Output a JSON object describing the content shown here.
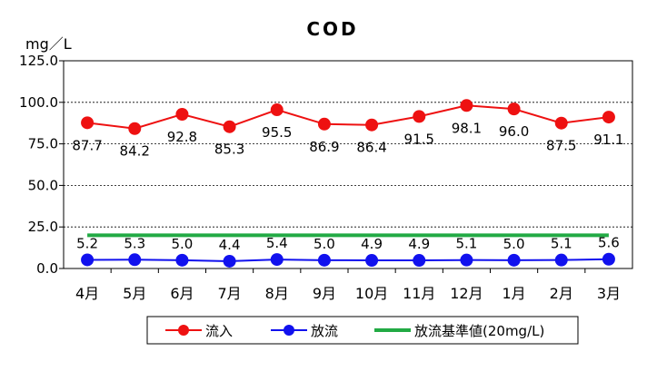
{
  "chart_data": {
    "type": "line",
    "title": "COD",
    "ylabel": "mg／L",
    "xlabel": "",
    "categories": [
      "4月",
      "5月",
      "6月",
      "7月",
      "8月",
      "9月",
      "10月",
      "11月",
      "12月",
      "1月",
      "2月",
      "3月"
    ],
    "ylim": [
      0,
      125
    ],
    "yticks": [
      "0.0",
      "25.0",
      "50.0",
      "75.0",
      "100.0",
      "125.0"
    ],
    "grid": "horizontal dashed",
    "legend_position": "bottom",
    "series": [
      {
        "name": "流入",
        "color": "#ee1111",
        "marker": "circle",
        "values": [
          87.7,
          84.2,
          92.8,
          85.3,
          95.5,
          86.9,
          86.4,
          91.5,
          98.1,
          96.0,
          87.5,
          91.1
        ],
        "labels": [
          "87.7",
          "84.2",
          "92.8",
          "85.3",
          "95.5",
          "86.9",
          "86.4",
          "91.5",
          "98.1",
          "96.0",
          "87.5",
          "91.1"
        ]
      },
      {
        "name": "放流",
        "color": "#1111ee",
        "marker": "circle",
        "values": [
          5.2,
          5.3,
          5.0,
          4.4,
          5.4,
          5.0,
          4.9,
          4.9,
          5.1,
          5.0,
          5.1,
          5.6
        ],
        "labels": [
          "5.2",
          "5.3",
          "5.0",
          "4.4",
          "5.4",
          "5.0",
          "4.9",
          "4.9",
          "5.1",
          "5.0",
          "5.1",
          "5.6"
        ]
      },
      {
        "name": "放流基準値(20mg/L)",
        "color": "#22aa44",
        "marker": "none",
        "values": [
          20,
          20,
          20,
          20,
          20,
          20,
          20,
          20,
          20,
          20,
          20,
          20
        ]
      }
    ]
  }
}
